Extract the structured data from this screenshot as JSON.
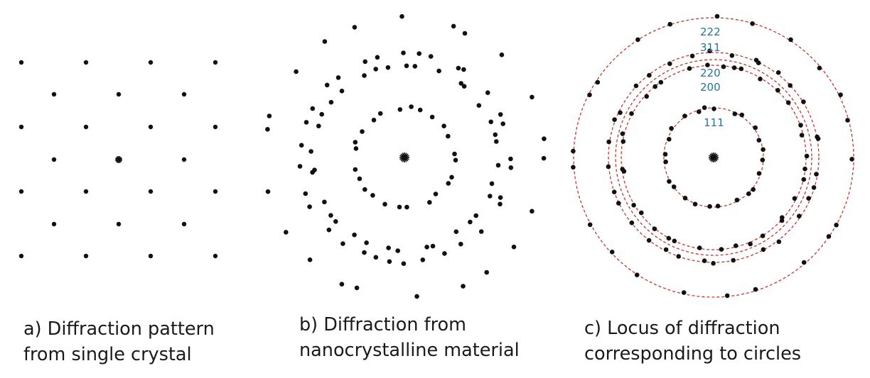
{
  "panels": [
    {
      "id": "a",
      "caption_lines": [
        "a) Diffraction pattern",
        "from single crystal"
      ]
    },
    {
      "id": "b",
      "caption_lines": [
        "b) Diffraction from",
        "nanocrystalline material"
      ]
    },
    {
      "id": "c",
      "caption_lines": [
        "c) Locus of diffraction",
        "corresponding to circles"
      ],
      "ring_labels": [
        "111",
        "200",
        "220",
        "311",
        "222"
      ]
    }
  ],
  "colors": {
    "spot": "#111111",
    "ring": "#c0392b",
    "label": "#1f77a0",
    "text": "#1a1a1a"
  }
}
